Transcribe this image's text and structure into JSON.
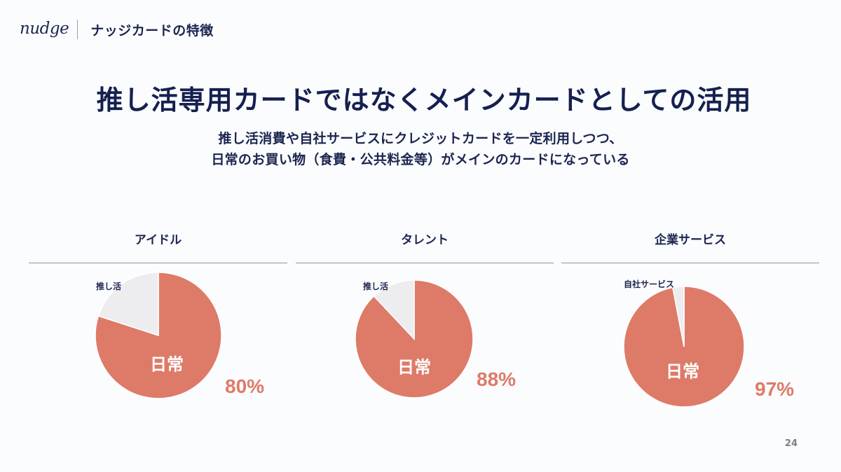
{
  "header": {
    "logo": "nudge",
    "section_title": "ナッジカードの特徴"
  },
  "main_title": "推し活専用カードではなくメインカードとしての活用",
  "subtitle": {
    "line1": "推し活消費や自社サービスにクレジットカードを一定利用しつつ、",
    "line2": "日常のお買い物（食費・公共料金等）がメインのカードになっている"
  },
  "colors": {
    "primary_slice": "#dd7b68",
    "secondary_slice": "#ededf0",
    "text_navy": "#1b2550",
    "background": "#fbfcfd"
  },
  "charts": [
    {
      "title": "アイドル",
      "minor_label": "推し活",
      "major_label": "日常",
      "percent_label": "80%"
    },
    {
      "title": "タレント",
      "minor_label": "推し活",
      "major_label": "日常",
      "percent_label": "88%"
    },
    {
      "title": "企業サービス",
      "minor_label": "自社サービス",
      "major_label": "日常",
      "percent_label": "97%"
    }
  ],
  "chart_data": [
    {
      "type": "pie",
      "title": "アイドル",
      "categories": [
        "日常",
        "推し活"
      ],
      "values": [
        80,
        20
      ],
      "annotations": [
        "80%"
      ],
      "legend": "none (inline labels)"
    },
    {
      "type": "pie",
      "title": "タレント",
      "categories": [
        "日常",
        "推し活"
      ],
      "values": [
        88,
        12
      ],
      "annotations": [
        "88%"
      ],
      "legend": "none (inline labels)"
    },
    {
      "type": "pie",
      "title": "企業サービス",
      "categories": [
        "日常",
        "自社サービス"
      ],
      "values": [
        97,
        3
      ],
      "annotations": [
        "97%"
      ],
      "legend": "none (inline labels)"
    }
  ],
  "page_number": "24"
}
